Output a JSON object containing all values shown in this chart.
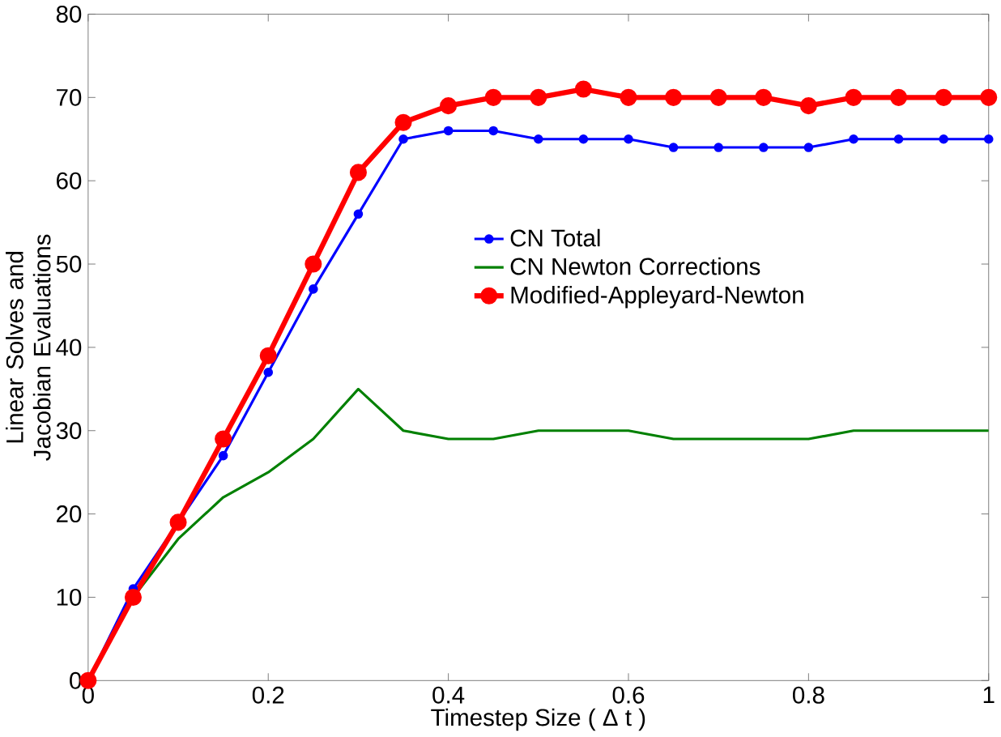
{
  "chart_data": {
    "type": "line",
    "xlabel": "Timestep Size ( Δ t )",
    "ylabel": "Linear Solves and Jacobian Evaluations",
    "x": [
      0,
      0.05,
      0.1,
      0.15,
      0.2,
      0.25,
      0.3,
      0.35,
      0.4,
      0.45,
      0.5,
      0.55,
      0.6,
      0.65,
      0.7,
      0.75,
      0.8,
      0.85,
      0.9,
      0.95,
      1
    ],
    "series": [
      {
        "name": "CN Total",
        "color": "#0000ff",
        "marker": "circle",
        "values": [
          0,
          11,
          19,
          27,
          37,
          47,
          56,
          65,
          66,
          66,
          65,
          65,
          65,
          64,
          64,
          64,
          64,
          65,
          65,
          65,
          65
        ]
      },
      {
        "name": "CN Newton Corrections",
        "color": "#008000",
        "marker": "none",
        "values": [
          0,
          10,
          17,
          22,
          25,
          29,
          35,
          30,
          29,
          29,
          30,
          30,
          30,
          29,
          29,
          29,
          29,
          30,
          30,
          30,
          30
        ]
      },
      {
        "name": "Modified-Appleyard-Newton",
        "color": "#ff0000",
        "marker": "circle",
        "values": [
          0,
          10,
          19,
          29,
          39,
          50,
          61,
          67,
          69,
          70,
          70,
          71,
          70,
          70,
          70,
          70,
          69,
          70,
          70,
          70,
          70
        ]
      }
    ],
    "xlim": [
      0,
      1
    ],
    "ylim": [
      0,
      80
    ],
    "xticks": [
      0,
      0.2,
      0.4,
      0.6,
      0.8,
      1
    ],
    "yticks": [
      0,
      10,
      20,
      30,
      40,
      50,
      60,
      70,
      80
    ],
    "legend": "right",
    "grid": false
  }
}
